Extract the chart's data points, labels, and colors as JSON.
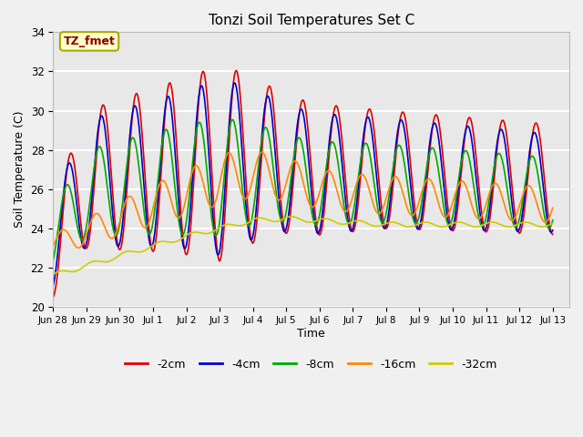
{
  "title": "Tonzi Soil Temperatures Set C",
  "xlabel": "Time",
  "ylabel": "Soil Temperature (C)",
  "ylim": [
    20,
    34
  ],
  "background_color": "#f0f0f0",
  "plot_bg_color": "#e8e8e8",
  "annotation_text": "TZ_fmet",
  "annotation_color": "#880000",
  "annotation_bg": "#ffffcc",
  "annotation_border": "#aaaa00",
  "legend_entries": [
    "-2cm",
    "-4cm",
    "-8cm",
    "-16cm",
    "-32cm"
  ],
  "line_colors": [
    "#dd0000",
    "#0000cc",
    "#00aa00",
    "#ff8800",
    "#cccc00"
  ],
  "tick_labels": [
    "Jun 28",
    "Jun 29",
    "Jun 30",
    "Jul 1",
    "Jul 2",
    "Jul 3",
    "Jul 4",
    "Jul 5",
    "Jul 6",
    "Jul 7",
    "Jul 8",
    "Jul 9",
    "Jul 10",
    "Jul 11",
    "Jul 12",
    "Jul 13"
  ]
}
